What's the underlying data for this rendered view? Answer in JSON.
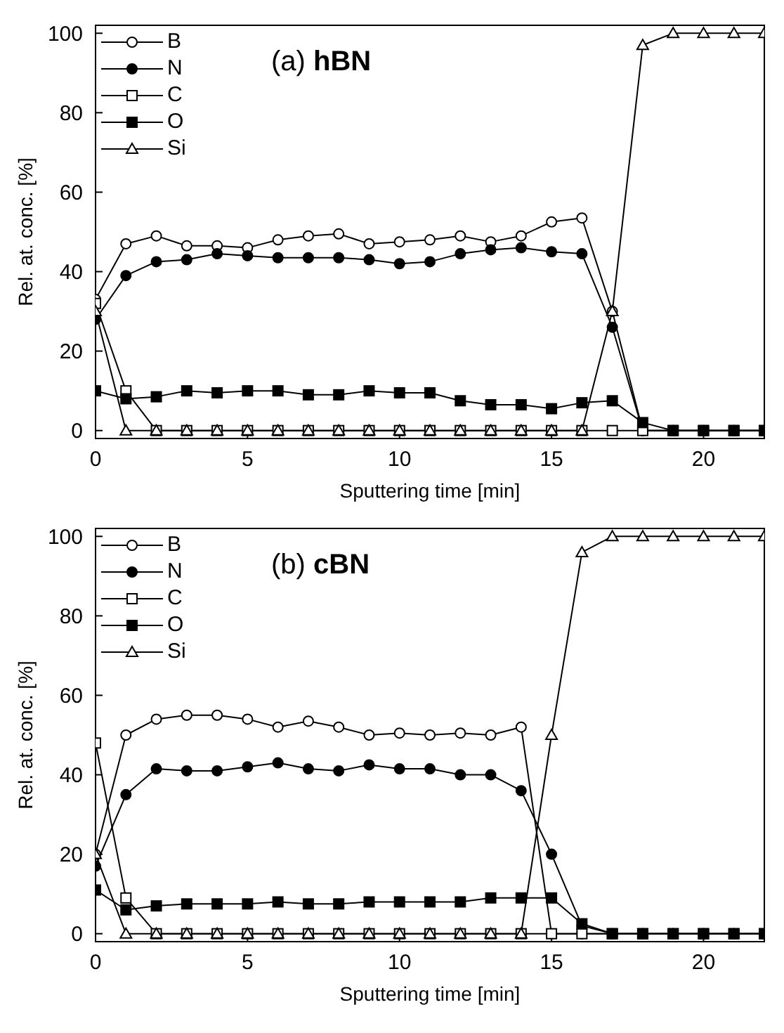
{
  "chart_data": [
    {
      "type": "line",
      "title": "(a) hBN",
      "xlabel": "Sputtering time [min]",
      "ylabel": "Rel. at. conc. [%]",
      "x": [
        0,
        1,
        2,
        3,
        4,
        5,
        6,
        7,
        8,
        9,
        10,
        11,
        12,
        13,
        14,
        15,
        16,
        17,
        18,
        19,
        20,
        21,
        22
      ],
      "xlim": [
        0,
        22
      ],
      "xticks": [
        0,
        5,
        10,
        15,
        20
      ],
      "ylim": [
        -2,
        102
      ],
      "yticks": [
        0,
        20,
        40,
        60,
        80,
        100
      ],
      "grid": false,
      "legend": "top left",
      "line_style": "solid",
      "series": [
        {
          "name": "B",
          "color": "#ffffff",
          "marker": "circle",
          "values": [
            33,
            47,
            49,
            46.5,
            46.5,
            46,
            48,
            49,
            49.5,
            47,
            47.5,
            48,
            49,
            47.5,
            49,
            52.5,
            53.5,
            30,
            0,
            0,
            0,
            0,
            0
          ]
        },
        {
          "name": "N",
          "color": "#000000",
          "marker": "circle",
          "values": [
            28,
            39,
            42.5,
            43,
            44.5,
            44,
            43.5,
            43.5,
            43.5,
            43,
            42,
            42.5,
            44.5,
            45.5,
            46,
            45,
            44.5,
            26,
            0,
            0,
            0,
            0,
            0
          ]
        },
        {
          "name": "C",
          "color": "#ffffff",
          "marker": "square",
          "values": [
            32,
            10,
            0,
            0,
            0,
            0,
            0,
            0,
            0,
            0,
            0,
            0,
            0,
            0,
            0,
            0,
            0,
            0,
            0,
            0,
            0,
            0,
            0
          ]
        },
        {
          "name": "O",
          "color": "#000000",
          "marker": "square",
          "values": [
            10,
            8,
            8.5,
            10,
            9.5,
            10,
            10,
            9,
            9,
            10,
            9.5,
            9.5,
            7.5,
            6.5,
            6.5,
            5.5,
            7,
            7.5,
            2,
            0,
            0,
            0,
            0
          ]
        },
        {
          "name": "Si",
          "color": "#ffffff",
          "marker": "triangle",
          "values": [
            30,
            0,
            0,
            0,
            0,
            0,
            0,
            0,
            0,
            0,
            0,
            0,
            0,
            0,
            0,
            0,
            0,
            30,
            97,
            100,
            100,
            100,
            100
          ]
        }
      ]
    },
    {
      "type": "line",
      "title": "(b) cBN",
      "xlabel": "Sputtering time [min]",
      "ylabel": "Rel. at. conc. [%]",
      "x": [
        0,
        1,
        2,
        3,
        4,
        5,
        6,
        7,
        8,
        9,
        10,
        11,
        12,
        13,
        14,
        15,
        16,
        17,
        18,
        19,
        20,
        21,
        22
      ],
      "xlim": [
        0,
        22
      ],
      "xticks": [
        0,
        5,
        10,
        15,
        20
      ],
      "ylim": [
        -2,
        102
      ],
      "yticks": [
        0,
        20,
        40,
        60,
        80,
        100
      ],
      "grid": false,
      "legend": "top left",
      "line_style": "solid",
      "series": [
        {
          "name": "B",
          "color": "#ffffff",
          "marker": "circle",
          "values": [
            20,
            50,
            54,
            55,
            55,
            54,
            52,
            53.5,
            52,
            50,
            50.5,
            50,
            50.5,
            50,
            52,
            0,
            0,
            0,
            0,
            0,
            0,
            0,
            0
          ]
        },
        {
          "name": "N",
          "color": "#000000",
          "marker": "circle",
          "values": [
            17,
            35,
            41.5,
            41,
            41,
            42,
            43,
            41.5,
            41,
            42.5,
            41.5,
            41.5,
            40,
            40,
            36,
            20,
            2,
            0,
            0,
            0,
            0,
            0,
            0
          ]
        },
        {
          "name": "C",
          "color": "#ffffff",
          "marker": "square",
          "values": [
            48,
            9,
            0,
            0,
            0,
            0,
            0,
            0,
            0,
            0,
            0,
            0,
            0,
            0,
            0,
            0,
            0,
            0,
            0,
            0,
            0,
            0,
            0
          ]
        },
        {
          "name": "O",
          "color": "#000000",
          "marker": "square",
          "values": [
            11,
            6,
            7,
            7.5,
            7.5,
            7.5,
            8,
            7.5,
            7.5,
            8,
            8,
            8,
            8,
            9,
            9,
            9,
            2.5,
            0,
            0,
            0,
            0,
            0,
            0
          ]
        },
        {
          "name": "Si",
          "color": "#ffffff",
          "marker": "triangle",
          "values": [
            20,
            0,
            0,
            0,
            0,
            0,
            0,
            0,
            0,
            0,
            0,
            0,
            0,
            0,
            0,
            50,
            96,
            100,
            100,
            100,
            100,
            100,
            100
          ]
        }
      ]
    }
  ]
}
